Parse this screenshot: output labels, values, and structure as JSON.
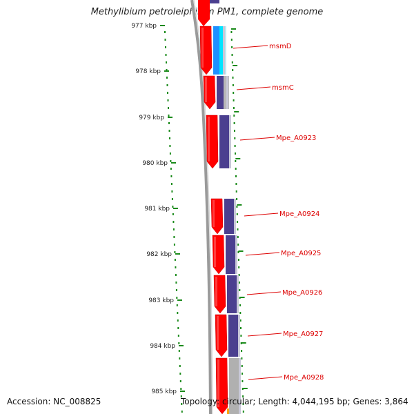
{
  "title": "Methylibium petroleiphilum PM1, complete genome",
  "footer": {
    "accession": "Accession: NC_008825",
    "summary": "Topology: circular; Length: 4,044,195 bp; Genes: 3,864"
  },
  "scale_labels": [
    "977 kbp",
    "978 kbp",
    "979 kbp",
    "980 kbp",
    "981 kbp",
    "982 kbp",
    "983 kbp",
    "984 kbp",
    "985 kbp"
  ],
  "genes": [
    {
      "name": "msmD",
      "strand": "+",
      "color": "#1e90ff"
    },
    {
      "name": "msmC",
      "strand": "+",
      "color": "#4b3f8f"
    },
    {
      "name": "Mpe_A0923",
      "strand": "+",
      "color": "#4b3f8f"
    },
    {
      "name": "Mpe_A0924",
      "strand": "+",
      "color": "#4b3f8f"
    },
    {
      "name": "Mpe_A0925",
      "strand": "+",
      "color": "#4b3f8f"
    },
    {
      "name": "Mpe_A0926",
      "strand": "+",
      "color": "#4b3f8f"
    },
    {
      "name": "Mpe_A0927",
      "strand": "+",
      "color": "#4b3f8f"
    },
    {
      "name": "Mpe_A0928",
      "strand": "+",
      "color": "#b0b0b0"
    }
  ],
  "colors": {
    "feature_red": "#ff0000",
    "tick_green": "#1a8a1a",
    "label_red": "#dd0000",
    "backbone": "#888888"
  }
}
